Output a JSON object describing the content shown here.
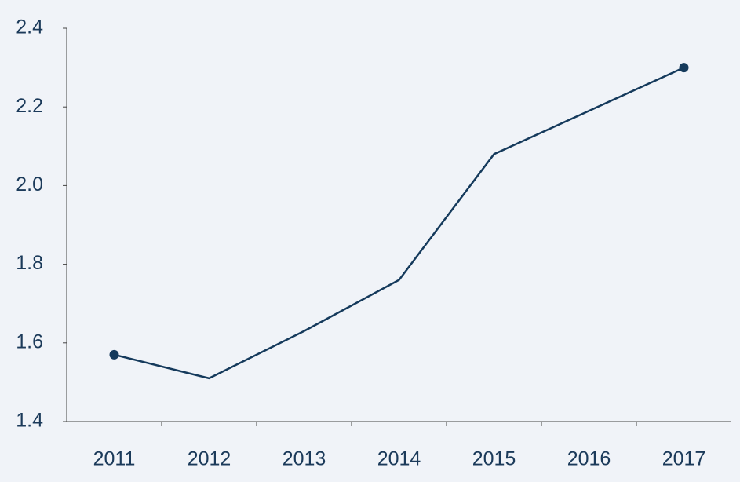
{
  "chart_data": {
    "type": "line",
    "categories": [
      "2011",
      "2012",
      "2013",
      "2014",
      "2015",
      "2016",
      "2017"
    ],
    "values": [
      1.57,
      1.51,
      1.63,
      1.76,
      2.08,
      2.19,
      2.3
    ],
    "color": "#153a5c",
    "markers": "endpoints",
    "ylim": [
      1.4,
      2.4
    ],
    "yticks": [
      1.4,
      1.6,
      1.8,
      {
        "value": 2,
        "label": "2.0"
      },
      2.2,
      2.4
    ],
    "grid": false
  }
}
